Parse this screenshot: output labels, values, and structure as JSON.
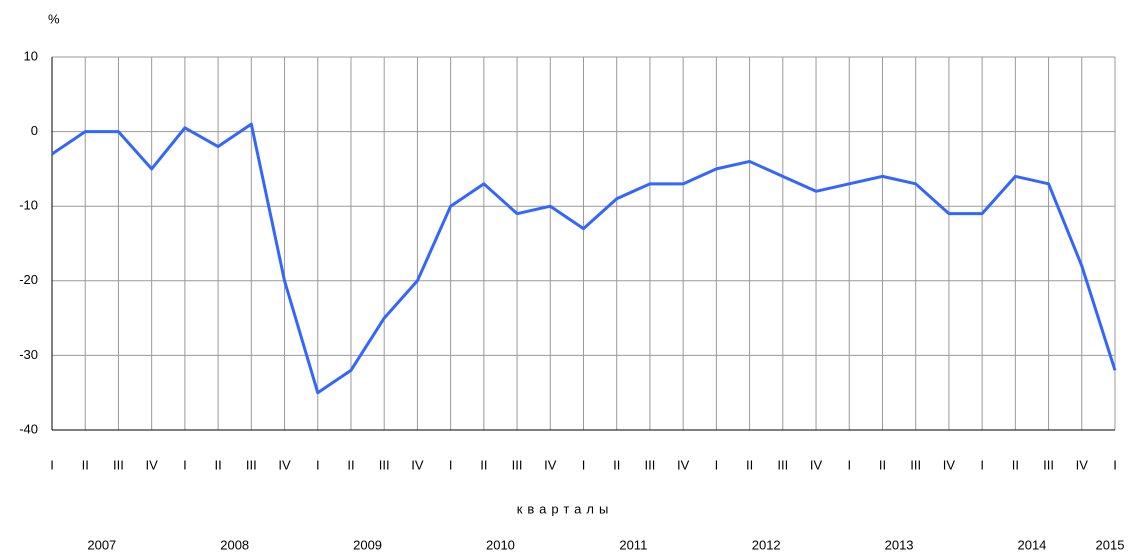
{
  "chart_data": {
    "type": "line",
    "y_axis_label": "%",
    "x_axis_label": "кварталы",
    "categories": [
      "I",
      "II",
      "III",
      "IV",
      "I",
      "II",
      "III",
      "IV",
      "I",
      "II",
      "III",
      "IV",
      "I",
      "II",
      "III",
      "IV",
      "I",
      "II",
      "III",
      "IV",
      "I",
      "II",
      "III",
      "IV",
      "I",
      "II",
      "III",
      "IV",
      "I",
      "II",
      "III",
      "IV",
      "I"
    ],
    "years": [
      "2007",
      "2008",
      "2009",
      "2010",
      "2011",
      "2012",
      "2013",
      "2014",
      "2015"
    ],
    "series": [
      {
        "name": "%",
        "color": "#3366ff",
        "values": [
          -3,
          0,
          0,
          -5,
          0.5,
          -2,
          1,
          -20,
          -35,
          -32,
          -25,
          -20,
          -10,
          -7,
          -11,
          -10,
          -13,
          -9,
          -7,
          -7,
          -5,
          -4,
          -6,
          -8,
          -7,
          -6,
          -7,
          -11,
          -11,
          -6,
          -7,
          -18,
          -32
        ]
      }
    ],
    "ylim": [
      -40,
      10
    ],
    "yticks": [
      -40,
      -30,
      -20,
      -10,
      0,
      10
    ],
    "grid": true
  }
}
